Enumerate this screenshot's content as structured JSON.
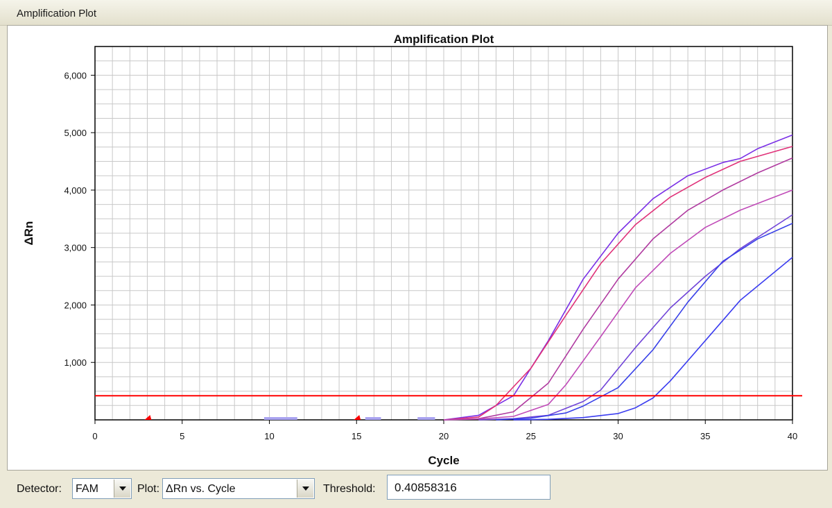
{
  "window": {
    "title": "Amplification Plot"
  },
  "chart_data": {
    "type": "line",
    "title": "Amplification Plot",
    "xlabel": "Cycle",
    "ylabel": "ΔRn",
    "xlim": [
      0,
      40
    ],
    "ylim": [
      0,
      6500
    ],
    "xticks": [
      0,
      5,
      10,
      15,
      20,
      25,
      30,
      35,
      40
    ],
    "yticks": [
      1000,
      2000,
      3000,
      4000,
      5000,
      6000
    ],
    "ytick_labels": [
      "1,000",
      "2,000",
      "3,000",
      "4,000",
      "5,000",
      "6,000"
    ],
    "grid": true,
    "threshold": 0.40858316,
    "threshold_display": 420,
    "threshold_color": "#ff0000",
    "baseline_markers": [
      3,
      15
    ],
    "baseline_segments": [
      [
        9.7,
        11.6
      ],
      [
        15.5,
        16.4
      ],
      [
        18.5,
        19.5
      ]
    ],
    "series": [
      {
        "color": "#7a2fe6",
        "x": [
          20,
          22,
          24,
          26,
          28,
          30,
          32,
          34,
          36,
          37,
          38,
          40
        ],
        "y": [
          0,
          80,
          420,
          1380,
          2450,
          3250,
          3850,
          4250,
          4480,
          4550,
          4720,
          4960
        ]
      },
      {
        "color": "#e03078",
        "x": [
          20,
          22,
          23,
          25,
          27,
          29,
          31,
          33,
          35,
          37,
          40
        ],
        "y": [
          0,
          50,
          250,
          900,
          1820,
          2720,
          3400,
          3880,
          4220,
          4500,
          4760
        ]
      },
      {
        "color": "#b03aa0",
        "x": [
          20,
          22,
          24,
          26,
          28,
          30,
          32,
          34,
          36,
          38,
          40
        ],
        "y": [
          0,
          20,
          140,
          640,
          1580,
          2450,
          3150,
          3650,
          4000,
          4300,
          4560
        ]
      },
      {
        "color": "#c04ab8",
        "x": [
          20,
          22,
          24,
          26,
          27,
          29,
          31,
          33,
          35,
          37,
          40
        ],
        "y": [
          0,
          15,
          60,
          270,
          610,
          1450,
          2300,
          2900,
          3350,
          3650,
          4000
        ]
      },
      {
        "color": "#7044d8",
        "x": [
          22,
          24,
          26,
          28,
          29,
          31,
          33,
          35,
          37,
          40
        ],
        "y": [
          0,
          20,
          80,
          320,
          520,
          1260,
          1950,
          2500,
          2980,
          3570
        ]
      },
      {
        "color": "#3840e8",
        "x": [
          23,
          25,
          27,
          28,
          30,
          32,
          34,
          36,
          38,
          40
        ],
        "y": [
          0,
          30,
          120,
          240,
          560,
          1220,
          2050,
          2760,
          3150,
          3420
        ]
      },
      {
        "color": "#3a3cf0",
        "x": [
          24,
          26,
          28,
          30,
          31,
          32,
          33,
          35,
          37,
          40
        ],
        "y": [
          0,
          10,
          40,
          110,
          210,
          380,
          680,
          1380,
          2080,
          2830
        ]
      }
    ]
  },
  "controls": {
    "detector_label": "Detector:",
    "detector_value": "FAM",
    "plot_label": "Plot:",
    "plot_value": "ΔRn vs. Cycle",
    "threshold_label": "Threshold:",
    "threshold_value": "0.40858316"
  }
}
